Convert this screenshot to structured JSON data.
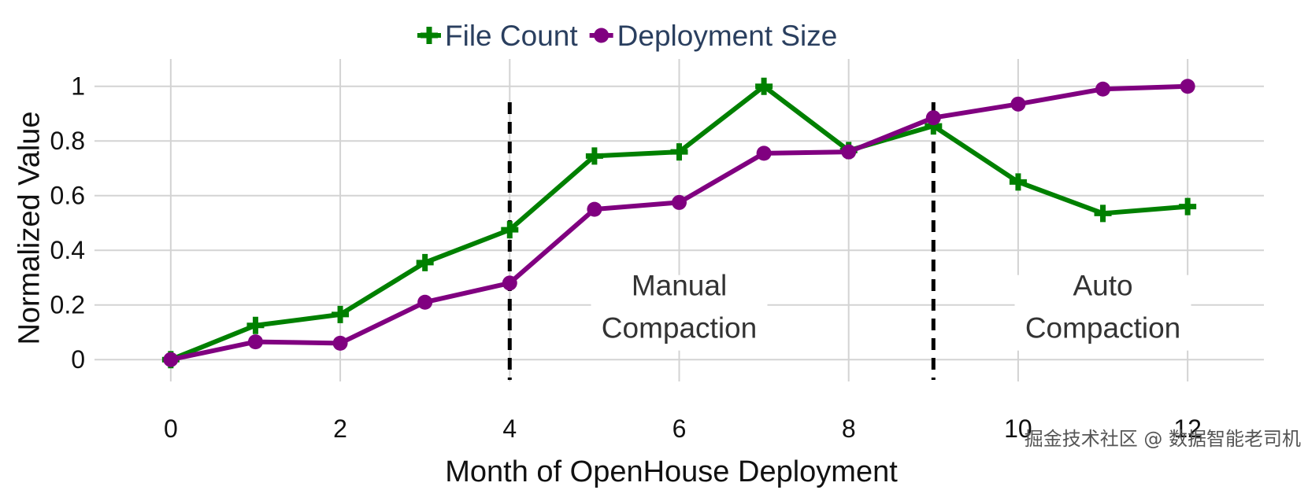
{
  "chart_data": {
    "type": "line",
    "x": [
      0,
      1,
      2,
      3,
      4,
      5,
      6,
      7,
      8,
      9,
      10,
      11,
      12
    ],
    "series": [
      {
        "name": "File Count",
        "color": "#008000",
        "marker": "cross",
        "values": [
          0,
          0.125,
          0.165,
          0.355,
          0.475,
          0.745,
          0.76,
          1.0,
          0.765,
          0.855,
          0.65,
          0.535,
          0.56
        ]
      },
      {
        "name": "Deployment Size",
        "color": "#800080",
        "marker": "circle",
        "values": [
          0,
          0.065,
          0.06,
          0.21,
          0.28,
          0.55,
          0.575,
          0.755,
          0.76,
          0.885,
          0.935,
          0.99,
          1.0
        ]
      }
    ],
    "xlabel": "Month of OpenHouse Deployment",
    "ylabel": "Normalized Value",
    "xlim": [
      -0.9,
      12.9
    ],
    "ylim": [
      -0.08,
      1.1
    ],
    "xticks": [
      0,
      2,
      4,
      6,
      8,
      10,
      12
    ],
    "yticks": [
      0,
      0.2,
      0.4,
      0.6,
      0.8,
      1
    ],
    "xtick_labels": [
      "0",
      "2",
      "4",
      "6",
      "8",
      "10",
      "12"
    ],
    "ytick_labels": [
      "0",
      "0.2",
      "0.4",
      "0.6",
      "0.8",
      "1"
    ],
    "grid": true,
    "legend_position": "top-center",
    "vlines": [
      {
        "x": 4,
        "style": "dashed",
        "color": "#000000"
      },
      {
        "x": 9,
        "style": "dashed",
        "color": "#000000"
      }
    ],
    "annotations": [
      {
        "x": 6,
        "y": 0.2,
        "lines": [
          "Manual",
          "Compaction"
        ]
      },
      {
        "x": 11,
        "y": 0.2,
        "lines": [
          "Auto",
          "Compaction"
        ]
      }
    ]
  },
  "watermark": "掘金技术社区 @ 数据智能老司机"
}
